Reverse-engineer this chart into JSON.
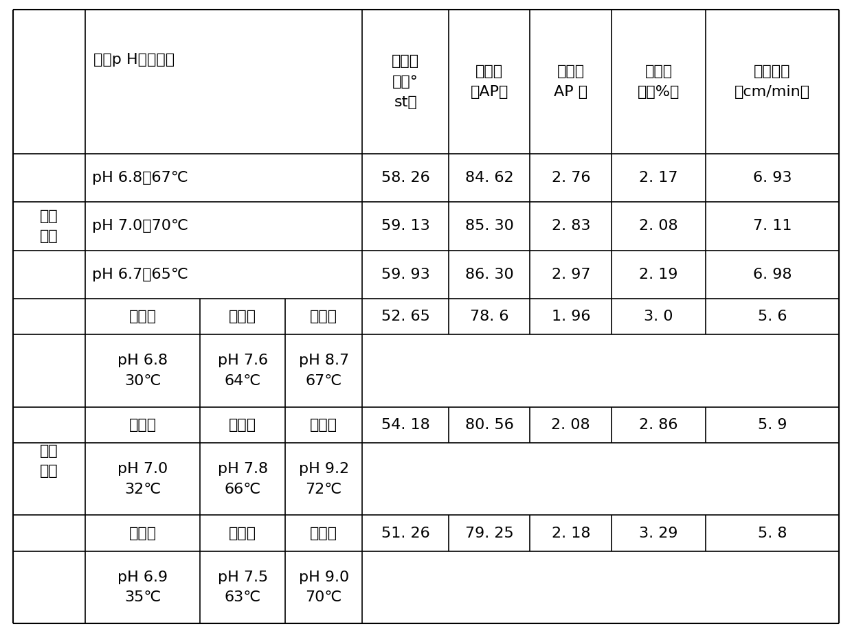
{
  "text_color": "#000000",
  "border_color": "#000000",
  "bg_color": "#ffffff",
  "font_size": 16,
  "figsize": [
    12.4,
    9.22
  ],
  "dpi": 100,
  "header_text_left": "预灰p H值、温度",
  "header_col4": "清汁色\n值（°\nst）",
  "header_col5": "简纯度\n（AP）",
  "header_col6": "清混汁\nAP 差",
  "header_col7": "清净效\n率（%）",
  "header_col8": "沉降速度\n（cm/min）",
  "label_trad": "传统\n预灰",
  "label_seg": "分段\n预灰",
  "trad_rows": [
    [
      "pH 6.8；67℃",
      "58. 26",
      "84. 62",
      "2. 76",
      "2. 17",
      "6. 93"
    ],
    [
      "pH 7.0；70℃",
      "59. 13",
      "85. 30",
      "2. 83",
      "2. 08",
      "7. 11"
    ],
    [
      "pH 6.7；65℃",
      "59. 93",
      "86. 30",
      "2. 97",
      "2. 19",
      "6. 98"
    ]
  ],
  "seg_groups": [
    {
      "subheader": [
        "预灰一",
        "预灰二",
        "预灰三",
        "52. 65",
        "78. 6",
        "1. 96",
        "3. 0",
        "5. 6"
      ],
      "detail": [
        "pH 6.8\n30℃",
        "pH 7.6\n64℃",
        "pH 8.7\n67℃"
      ]
    },
    {
      "subheader": [
        "预灰一",
        "预灰二",
        "预灰三",
        "54. 18",
        "80. 56",
        "2. 08",
        "2. 86",
        "5. 9"
      ],
      "detail": [
        "pH 7.0\n32℃",
        "pH 7.8\n66℃",
        "pH 9.2\n72℃"
      ]
    },
    {
      "subheader": [
        "预灰一",
        "预灰二",
        "预灰三",
        "51. 26",
        "79. 25",
        "2. 18",
        "3. 29",
        "5. 8"
      ],
      "detail": [
        "pH 6.9\n35℃",
        "pH 7.5\n63℃",
        "pH 9.0\n70℃"
      ]
    }
  ]
}
